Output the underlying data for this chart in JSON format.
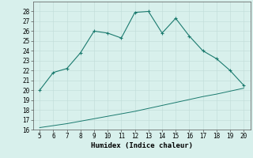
{
  "xlabel": "Humidex (Indice chaleur)",
  "x_values": [
    5,
    6,
    7,
    8,
    9,
    10,
    11,
    12,
    13,
    14,
    15,
    16,
    17,
    18,
    19,
    20
  ],
  "y_main": [
    20.0,
    21.8,
    22.2,
    23.8,
    26.0,
    25.8,
    25.3,
    27.9,
    28.0,
    25.8,
    27.3,
    25.5,
    24.0,
    23.2,
    22.0,
    20.5
  ],
  "y_base": [
    16.2,
    16.4,
    16.6,
    16.85,
    17.1,
    17.35,
    17.6,
    17.85,
    18.15,
    18.45,
    18.75,
    19.05,
    19.35,
    19.6,
    19.9,
    20.2
  ],
  "ylim": [
    16,
    29
  ],
  "xlim": [
    4.5,
    20.5
  ],
  "yticks": [
    16,
    17,
    18,
    19,
    20,
    21,
    22,
    23,
    24,
    25,
    26,
    27,
    28
  ],
  "xticks": [
    5,
    6,
    7,
    8,
    9,
    10,
    11,
    12,
    13,
    14,
    15,
    16,
    17,
    18,
    19,
    20
  ],
  "line_color": "#1a7a6e",
  "bg_color": "#d8f0ec",
  "grid_color_major": "#c0dcd8",
  "grid_color_minor": "#daeae8",
  "tick_fontsize": 5.5,
  "label_fontsize": 6.5
}
